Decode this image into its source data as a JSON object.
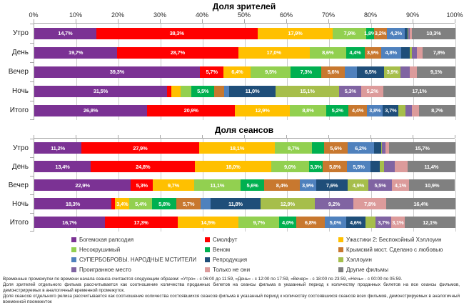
{
  "series": [
    {
      "name": "Богемская рапсодия",
      "color": "#7B3294"
    },
    {
      "name": "Смолфут",
      "color": "#FF0000"
    },
    {
      "name": "Ужастики 2: Беспокойный Хэллоуин",
      "color": "#FFC000"
    },
    {
      "name": "Несокрушимый",
      "color": "#92D050"
    },
    {
      "name": "Веном",
      "color": "#00B050"
    },
    {
      "name": "Крымский мост. Сделано с любовью",
      "color": "#C8782F"
    },
    {
      "name": "СУПЕРБОБРОВЫ. НАРОДНЫЕ МСТИТЕЛИ",
      "color": "#4F81BD"
    },
    {
      "name": "Репродукция",
      "color": "#1F4E79"
    },
    {
      "name": "Хэллоуин",
      "color": "#A6BE4B"
    },
    {
      "name": "Проигранное место",
      "color": "#8064A2"
    },
    {
      "name": "Только не они",
      "color": "#DC9B9B"
    },
    {
      "name": "Другие фильмы",
      "color": "#808080"
    }
  ],
  "chart_data": [
    {
      "type": "bar",
      "subtype": "horizontal_stacked",
      "title": "Доля зрителей",
      "categories": [
        "Утро",
        "День",
        "Вечер",
        "Ночь",
        "Итого"
      ],
      "xlim": [
        0,
        100
      ],
      "x_ticks": [
        "0%",
        "10%",
        "20%",
        "30%",
        "40%",
        "50%",
        "60%",
        "70%",
        "80%",
        "90%",
        "100%"
      ],
      "show_x_tick_labels": true,
      "grid": true,
      "series": [
        {
          "name": "Богемская рапсодия",
          "values": [
            14.7,
            19.7,
            39.3,
            31.5,
            26.8
          ],
          "labels": [
            "14,7%",
            "19,7%",
            "39,3%",
            "31,5%",
            "26,8%"
          ]
        },
        {
          "name": "Смолфут",
          "values": [
            38.3,
            28.7,
            5.7,
            1.0,
            20.9
          ],
          "labels": [
            "38,3%",
            "28,7%",
            "5,7%",
            "",
            "20,9%"
          ]
        },
        {
          "name": "Ужастики 2: Беспокойный Хэллоуин",
          "values": [
            17.9,
            17.0,
            6.4,
            2.2,
            12.9
          ],
          "labels": [
            "17,9%",
            "17,0%",
            "6,4%",
            "",
            "12,9%"
          ]
        },
        {
          "name": "Несокрушимый",
          "values": [
            7.9,
            8.6,
            9.5,
            2.6,
            8.8
          ],
          "labels": [
            "7,9%",
            "8,6%",
            "9,5%",
            "",
            "8,8%"
          ]
        },
        {
          "name": "Веном",
          "values": [
            1.8,
            4.4,
            7.3,
            5.5,
            5.2
          ],
          "labels": [
            "1,8%",
            "4,4%",
            "7,3%",
            "5,5%",
            "5,2%"
          ]
        },
        {
          "name": "Крымский мост. Сделано с любовью",
          "values": [
            3.2,
            3.9,
            5.6,
            2.3,
            4.4
          ],
          "labels": [
            "3,2%",
            "3,9%",
            "5,6%",
            "",
            "4,4%"
          ]
        },
        {
          "name": "СУПЕРБОБРОВЫ. НАРОДНЫЕ МСТИТЕЛИ",
          "values": [
            4.2,
            4.8,
            2.8,
            1.2,
            3.8
          ],
          "labels": [
            "4,2%",
            "4,8%",
            "",
            "",
            "3,8%"
          ]
        },
        {
          "name": "Репродукция",
          "values": [
            0.7,
            2.0,
            6.5,
            11.0,
            3.7
          ],
          "labels": [
            "",
            "",
            "6,5%",
            "11,0%",
            "3,7%"
          ]
        },
        {
          "name": "Хэллоуин",
          "values": [
            0.2,
            0.5,
            3.9,
            15.1,
            1.6
          ],
          "labels": [
            "",
            "",
            "3,9%",
            "15,1%",
            ""
          ]
        },
        {
          "name": "Проигранное место",
          "values": [
            0.3,
            1.2,
            2.2,
            5.3,
            1.6
          ],
          "labels": [
            "",
            "",
            "",
            "5,3%",
            ""
          ]
        },
        {
          "name": "Только не они",
          "values": [
            0.5,
            1.4,
            1.7,
            5.2,
            1.6
          ],
          "labels": [
            "",
            "",
            "",
            "5,2%",
            ""
          ]
        },
        {
          "name": "Другие фильмы",
          "values": [
            10.3,
            7.8,
            9.1,
            17.1,
            8.7
          ],
          "labels": [
            "10,3%",
            "7,8%",
            "9,1%",
            "17,1%",
            "8,7%"
          ]
        }
      ]
    },
    {
      "type": "bar",
      "subtype": "horizontal_stacked",
      "title": "Доля сеансов",
      "categories": [
        "Утро",
        "День",
        "Вечер",
        "Ночь",
        "Итого"
      ],
      "xlim": [
        0,
        100
      ],
      "x_ticks": [
        "0%",
        "10%",
        "20%",
        "30%",
        "40%",
        "50%",
        "60%",
        "70%",
        "80%",
        "90%",
        "100%"
      ],
      "show_x_tick_labels": false,
      "grid": true,
      "series": [
        {
          "name": "Богемская рапсодия",
          "values": [
            11.2,
            13.4,
            22.9,
            18.3,
            16.7
          ],
          "labels": [
            "11,2%",
            "13,4%",
            "22,9%",
            "18,3%",
            "16,7%"
          ]
        },
        {
          "name": "Смолфут",
          "values": [
            27.9,
            24.8,
            5.3,
            0.9,
            17.3
          ],
          "labels": [
            "27,9%",
            "24,8%",
            "5,3%",
            "",
            "17,3%"
          ]
        },
        {
          "name": "Ужастики 2: Беспокойный Хэллоуин",
          "values": [
            18.1,
            18.0,
            9.7,
            3.4,
            14.5
          ],
          "labels": [
            "18,1%",
            "18,0%",
            "9,7%",
            "3,4%",
            "14,5%"
          ]
        },
        {
          "name": "Несокрушимый",
          "values": [
            8.7,
            9.0,
            11.1,
            5.4,
            9.7
          ],
          "labels": [
            "8,7%",
            "9,0%",
            "11,1%",
            "5,4%",
            "9,7%"
          ]
        },
        {
          "name": "Веном",
          "values": [
            2.9,
            3.3,
            5.6,
            5.8,
            4.0
          ],
          "labels": [
            "",
            "3,3%",
            "5,6%",
            "5,8%",
            "4,0%"
          ]
        },
        {
          "name": "Крымский мост. Сделано с любовью",
          "values": [
            5.6,
            5.8,
            8.4,
            5.7,
            6.8
          ],
          "labels": [
            "5,6%",
            "5,8%",
            "8,4%",
            "5,7%",
            "6,8%"
          ]
        },
        {
          "name": "СУПЕРБОБРОВЫ. НАРОДНЫЕ МСТИТЕЛИ",
          "values": [
            6.2,
            5.5,
            3.9,
            2.4,
            5.0
          ],
          "labels": [
            "6,2%",
            "5,5%",
            "3,9%",
            "",
            "5,0%"
          ]
        },
        {
          "name": "Репродукция",
          "values": [
            1.7,
            2.3,
            7.6,
            11.8,
            4.6
          ],
          "labels": [
            "",
            "",
            "7,6%",
            "11,8%",
            "4,6%"
          ]
        },
        {
          "name": "Хэллоуин",
          "values": [
            0.3,
            0.9,
            4.9,
            12.9,
            2.5
          ],
          "labels": [
            "",
            "",
            "4,9%",
            "12,9%",
            ""
          ]
        },
        {
          "name": "Проигранное место",
          "values": [
            0.8,
            2.6,
            5.5,
            9.2,
            3.7
          ],
          "labels": [
            "",
            "",
            "5,5%",
            "9,2%",
            "3,7%"
          ]
        },
        {
          "name": "Только не они",
          "values": [
            0.9,
            3.0,
            4.1,
            7.8,
            3.1
          ],
          "labels": [
            "",
            "",
            "4,1%",
            "7,8%",
            "3,1%"
          ]
        },
        {
          "name": "Другие фильмы",
          "values": [
            15.7,
            11.4,
            10.9,
            16.4,
            12.1
          ],
          "labels": [
            "15,7%",
            "11,4%",
            "10,9%",
            "16,4%",
            "12,1%"
          ]
        }
      ]
    }
  ],
  "footnotes": [
    "Временные промежутки по времени начала сеанса считаются следующим образом: «Утро» - с 06:00 до 11:59, «День» - с 12:00 по 17:59, «Вечер» - с 18:00 по 23:59, «Ночь» - с 00:00 по 05:59.",
    "Доля зрителей отдельного фильма рассчитывается как соотношение количества проданных билетов на сеансы фильма в указанный период к количеству проданных билетов на все сеансы фильмов, демонстрируемых в аналогичный временной промежуток.",
    "Доля сеансов отдельного релиза рассчитывается как соотношение количества состоявшихся сеансов фильма в указанный период к количеству состоявшихся сеансов всех фильмов, демонстрируемых в аналогичный временной промежуток"
  ]
}
